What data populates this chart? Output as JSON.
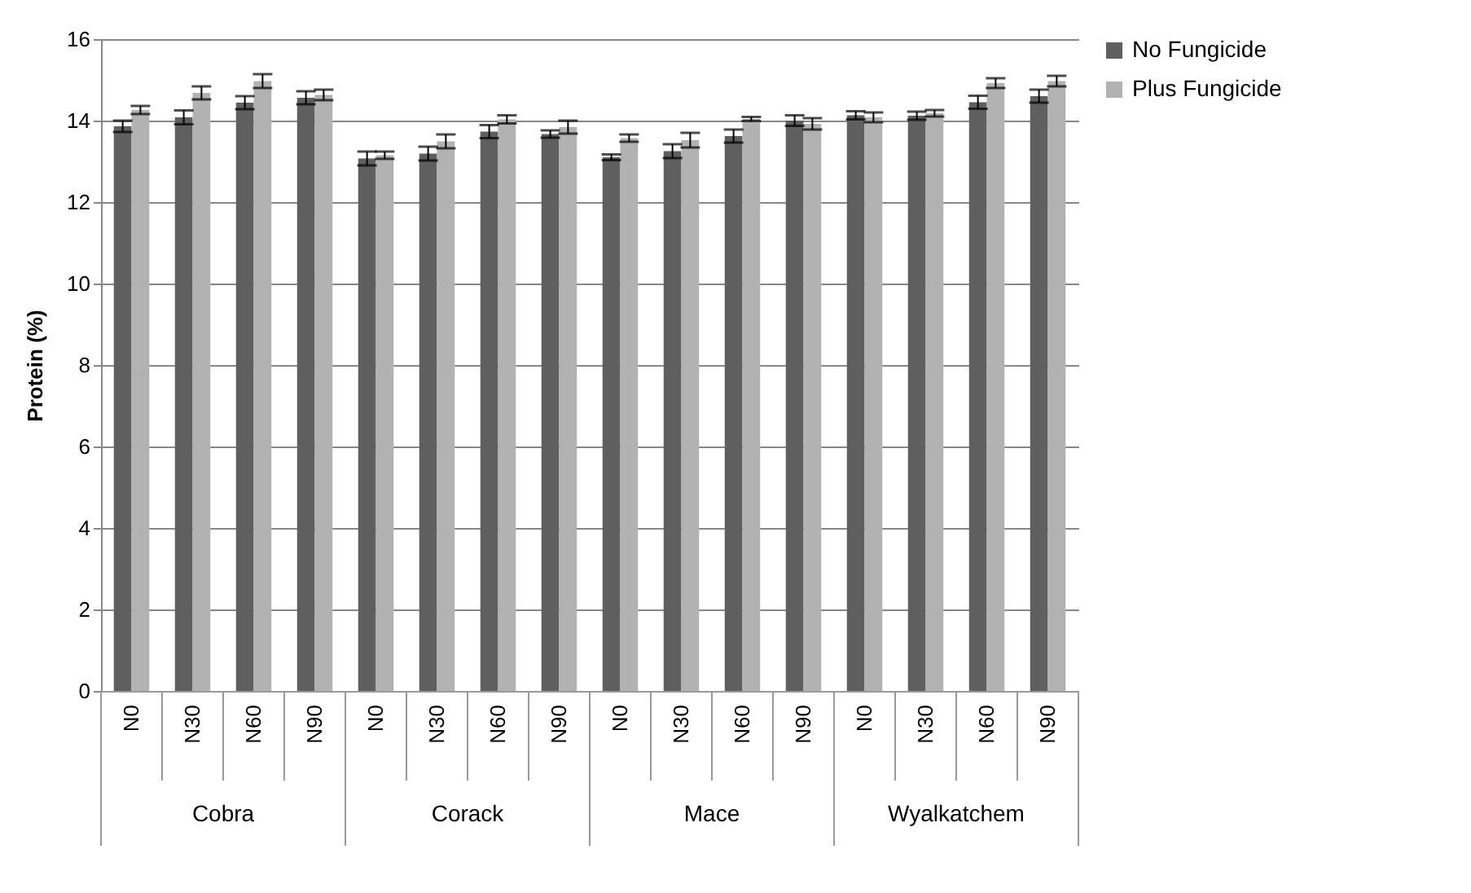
{
  "chart_data": {
    "type": "bar",
    "ylabel": "Protein (%)",
    "categories": [
      "N0",
      "N30",
      "N60",
      "N90",
      "N0",
      "N30",
      "N60",
      "N90",
      "N0",
      "N30",
      "N60",
      "N90",
      "N0",
      "N30",
      "N60",
      "N90"
    ],
    "series": [
      {
        "name": "No Fungicide",
        "color": "#5f5f5f",
        "values": [
          13.86,
          14.08,
          14.44,
          14.56,
          13.07,
          13.19,
          13.73,
          13.67,
          13.1,
          13.25,
          13.62,
          14.0,
          14.13,
          14.12,
          14.45,
          14.6
        ],
        "errors": [
          0.14,
          0.17,
          0.16,
          0.16,
          0.17,
          0.17,
          0.16,
          0.09,
          0.07,
          0.17,
          0.16,
          0.13,
          0.1,
          0.1,
          0.16,
          0.16
        ]
      },
      {
        "name": "Plus Fungicide",
        "color": "#b2b2b2",
        "values": [
          14.26,
          14.68,
          14.97,
          14.63,
          13.15,
          13.49,
          14.03,
          13.84,
          13.57,
          13.52,
          14.04,
          13.92,
          14.08,
          14.18,
          14.92,
          14.97
        ],
        "errors": [
          0.1,
          0.16,
          0.17,
          0.13,
          0.09,
          0.17,
          0.1,
          0.16,
          0.09,
          0.18,
          0.05,
          0.14,
          0.12,
          0.08,
          0.12,
          0.13
        ]
      }
    ],
    "annotations": [
      "Cobra",
      "Corack",
      "Mace",
      "Wyalkatchem"
    ],
    "ylim": [
      0,
      16
    ],
    "yticks": [
      0,
      2,
      4,
      6,
      8,
      10,
      12,
      14,
      16
    ],
    "grid": "y",
    "legend": "right"
  }
}
